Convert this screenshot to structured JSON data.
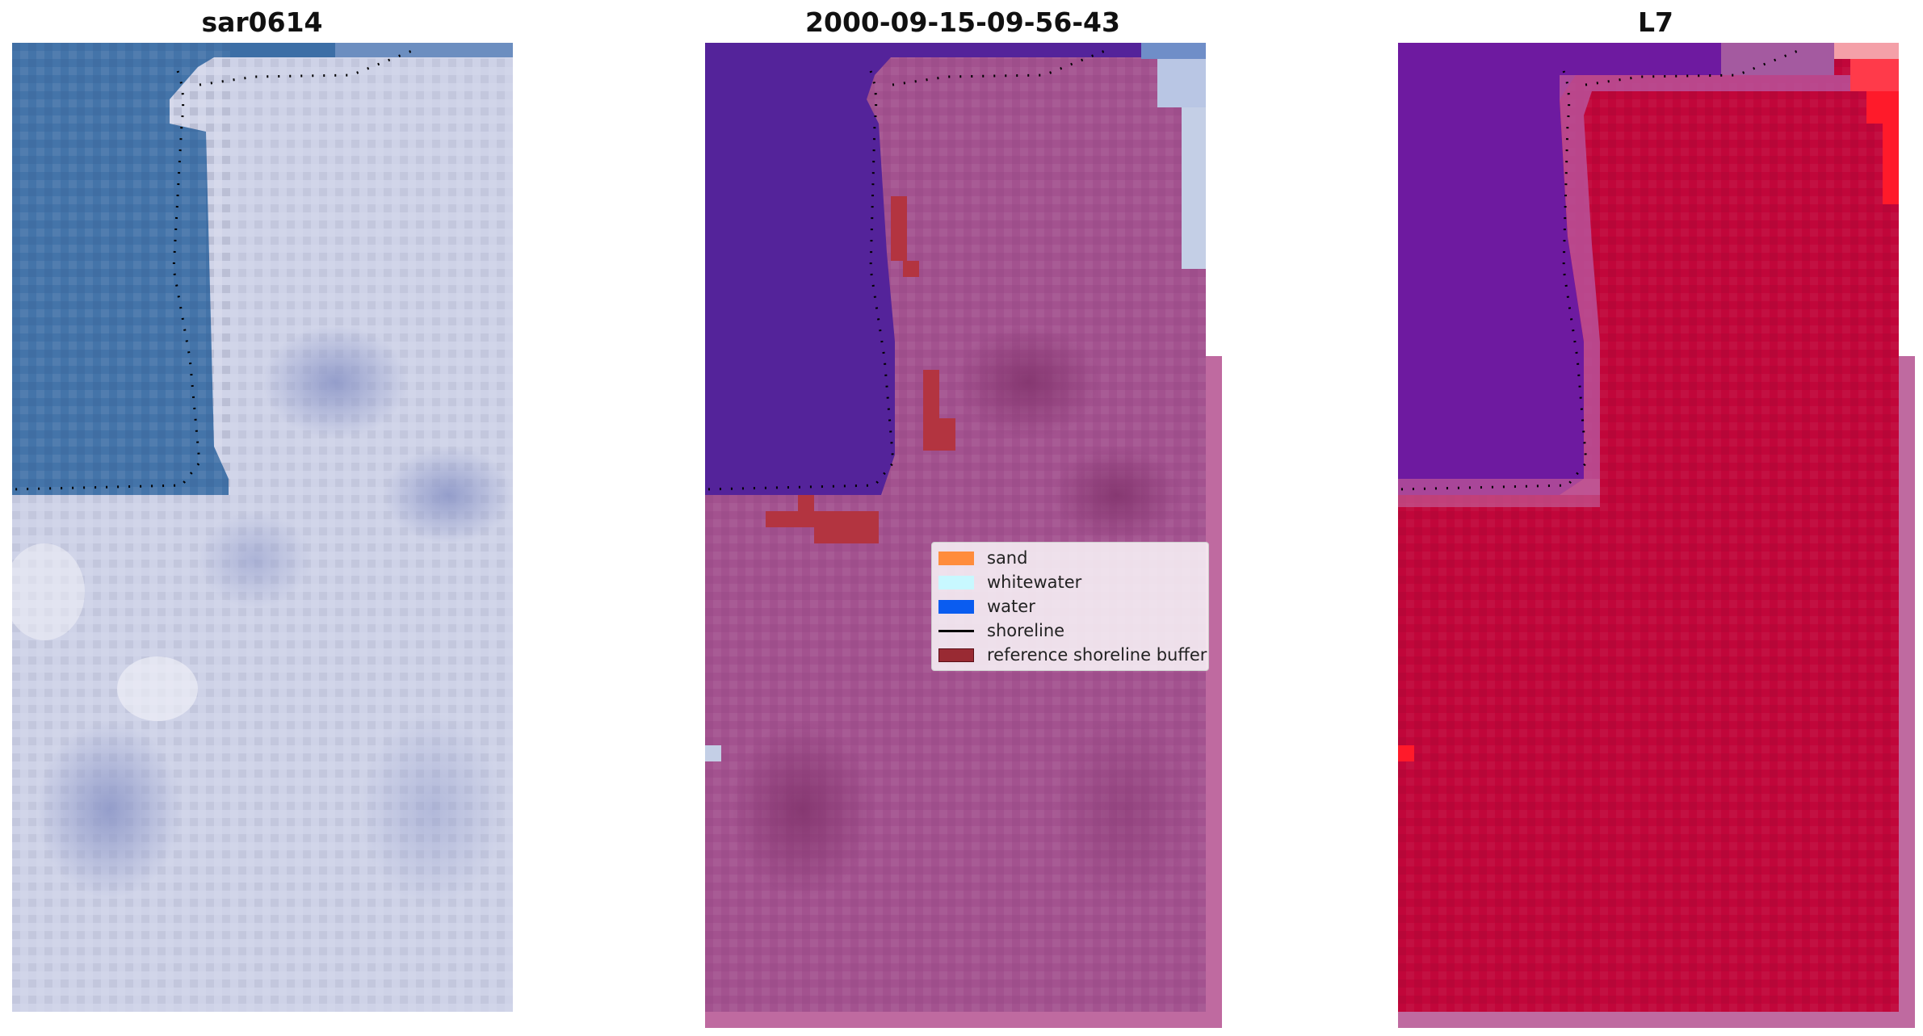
{
  "figure": {
    "panels": [
      {
        "title": "sar0614",
        "view": "rgb-image"
      },
      {
        "title": "2000-09-15-09-56-43",
        "view": "classified-image"
      },
      {
        "title": "L7",
        "view": "index-image"
      }
    ]
  },
  "legend": {
    "items": [
      {
        "label": "sand",
        "color": "#ff8c3c",
        "kind": "patch"
      },
      {
        "label": "whitewater",
        "color": "#c8f8ff",
        "kind": "patch"
      },
      {
        "label": "water",
        "color": "#0a5cf0",
        "kind": "patch"
      },
      {
        "label": "shoreline",
        "color": "#000000",
        "kind": "line"
      },
      {
        "label": "reference shoreline buffer",
        "color": "#992a33",
        "kind": "patch"
      }
    ]
  },
  "colors": {
    "sea_rgb": "#3c6ea6",
    "land_rgb": "#ccd0e6",
    "water_class": "#54239a",
    "land_overlay": "#b05c98",
    "buffer": "#b33440",
    "index_high": "#c1063a",
    "index_low": "#6e1aa0"
  }
}
